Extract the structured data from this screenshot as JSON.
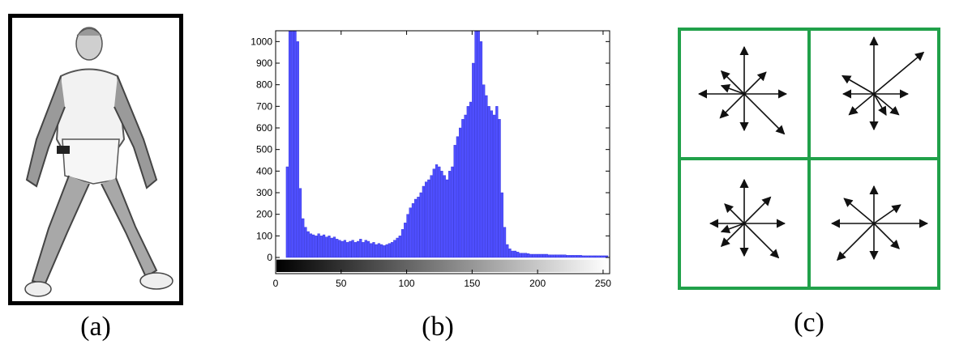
{
  "captions": {
    "a": "(a)",
    "b": "(b)",
    "c": "(c)"
  },
  "colors": {
    "bar": "#4f4fff",
    "bar_edge": "#2a2ad8",
    "grid_line": "#21a14a",
    "arrow": "#111111"
  },
  "photo": {
    "description_icon": "person-silhouette-icon"
  },
  "chart_data": {
    "type": "bar",
    "title": "",
    "xlabel": "",
    "ylabel": "",
    "xlim": [
      0,
      255
    ],
    "ylim": [
      -75,
      1050
    ],
    "x_ticks": [
      0,
      50,
      100,
      150,
      200,
      250
    ],
    "y_ticks": [
      0,
      100,
      200,
      300,
      400,
      500,
      600,
      700,
      800,
      900,
      1000
    ],
    "colorbar": "grayscale 0-255 below x axis",
    "grid": false,
    "bin_width": 2,
    "x": [
      0,
      2,
      4,
      6,
      8,
      10,
      12,
      14,
      16,
      18,
      20,
      22,
      24,
      26,
      28,
      30,
      32,
      34,
      36,
      38,
      40,
      42,
      44,
      46,
      48,
      50,
      52,
      54,
      56,
      58,
      60,
      62,
      64,
      66,
      68,
      70,
      72,
      74,
      76,
      78,
      80,
      82,
      84,
      86,
      88,
      90,
      92,
      94,
      96,
      98,
      100,
      102,
      104,
      106,
      108,
      110,
      112,
      114,
      116,
      118,
      120,
      122,
      124,
      126,
      128,
      130,
      132,
      134,
      136,
      138,
      140,
      142,
      144,
      146,
      148,
      150,
      152,
      154,
      156,
      158,
      160,
      162,
      164,
      166,
      168,
      170,
      172,
      174,
      176,
      178,
      180,
      182,
      184,
      186,
      188,
      190,
      192,
      194,
      196,
      198,
      200,
      202,
      204,
      206,
      208,
      210,
      212,
      214,
      216,
      218,
      220,
      222,
      224,
      226,
      228,
      230,
      232,
      234,
      236,
      238,
      240,
      242,
      244,
      246,
      248,
      250,
      252
    ],
    "values": [
      0,
      0,
      0,
      0,
      420,
      1050,
      1050,
      1050,
      1000,
      320,
      180,
      140,
      120,
      110,
      105,
      100,
      110,
      100,
      105,
      95,
      100,
      90,
      95,
      85,
      80,
      75,
      80,
      70,
      75,
      80,
      70,
      75,
      85,
      70,
      80,
      75,
      65,
      70,
      60,
      65,
      60,
      55,
      60,
      65,
      70,
      80,
      90,
      100,
      130,
      160,
      200,
      230,
      250,
      270,
      280,
      300,
      330,
      350,
      360,
      380,
      410,
      430,
      420,
      400,
      380,
      360,
      400,
      420,
      520,
      560,
      600,
      640,
      660,
      700,
      720,
      900,
      1050,
      1050,
      1000,
      800,
      750,
      700,
      680,
      660,
      700,
      640,
      300,
      140,
      60,
      40,
      30,
      30,
      25,
      20,
      20,
      20,
      18,
      15,
      15,
      15,
      15,
      15,
      15,
      15,
      12,
      12,
      12,
      12,
      12,
      12,
      12,
      10,
      10,
      10,
      10,
      10,
      10,
      8,
      8,
      8,
      8,
      8,
      8,
      8,
      8,
      8,
      8
    ]
  }
}
